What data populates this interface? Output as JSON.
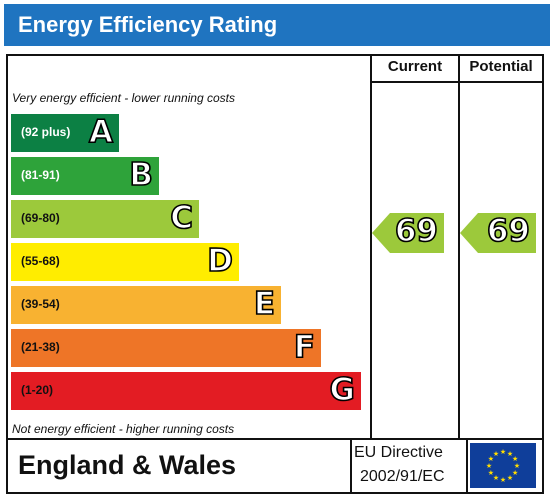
{
  "title": "Energy Efficiency Rating",
  "columns": {
    "current": "Current",
    "potential": "Potential"
  },
  "notes": {
    "top": "Very energy efficient - lower running costs",
    "bottom": "Not energy efficient - higher running costs"
  },
  "bands": [
    {
      "range": "(92 plus)",
      "letter": "A",
      "color": "#0c8044",
      "range_color": "#ffffff"
    },
    {
      "range": "(81-91)",
      "letter": "B",
      "color": "#2ea33a",
      "range_color": "#ffffff"
    },
    {
      "range": "(69-80)",
      "letter": "C",
      "color": "#9cc93b",
      "range_color": "#111111"
    },
    {
      "range": "(55-68)",
      "letter": "D",
      "color": "#ffed00",
      "range_color": "#111111"
    },
    {
      "range": "(39-54)",
      "letter": "E",
      "color": "#f8b231",
      "range_color": "#111111"
    },
    {
      "range": "(21-38)",
      "letter": "F",
      "color": "#ee7527",
      "range_color": "#111111"
    },
    {
      "range": "(1-20)",
      "letter": "G",
      "color": "#e31c23",
      "range_color": "#111111"
    }
  ],
  "current": {
    "value": "69",
    "color": "#9cc93b"
  },
  "potential": {
    "value": "69",
    "color": "#9cc93b"
  },
  "footer": {
    "region": "England & Wales",
    "directive_line1": "EU Directive",
    "directive_line2": "2002/91/EC"
  },
  "flag": {
    "name": "eu-flag-icon",
    "background": "#0f3e9a",
    "star_color": "#ffdd00"
  }
}
